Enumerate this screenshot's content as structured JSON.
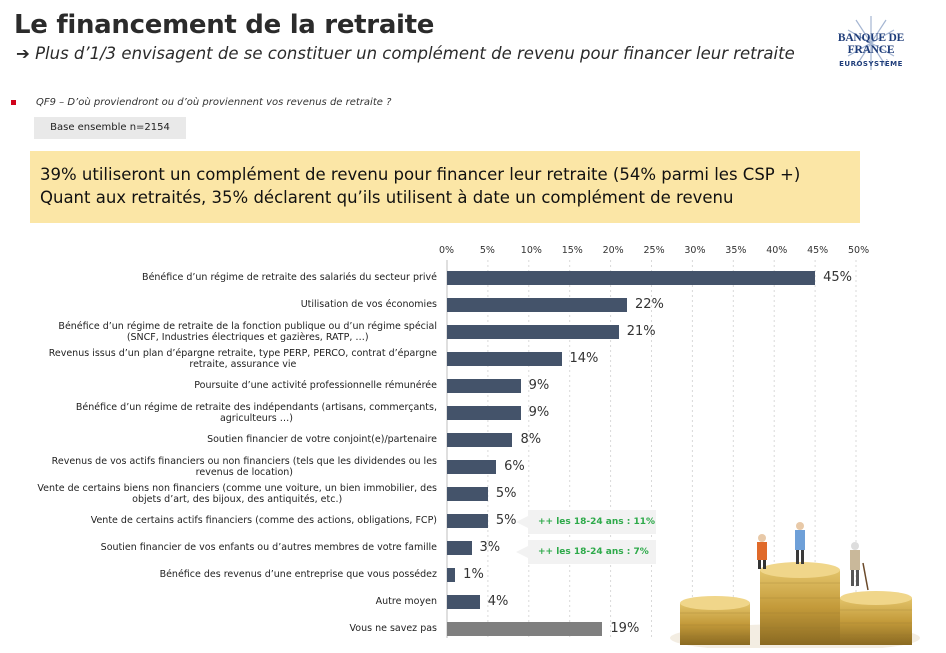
{
  "header": {
    "title": "Le financement de la retraite",
    "subtitle": "Plus d’1/3 envisagent de se constituer un complément de revenu pour financer leur retraite"
  },
  "logo": {
    "name": "BANQUE DE FRANCE",
    "sub": "EUROSYSTÈME"
  },
  "question": "QF9 – D’où proviendront ou d’où proviennent vos revenus de retraite ?",
  "base": "Base ensemble  n=2154",
  "highlight": {
    "line1": "39% utiliseront un complément de revenu pour financer leur retraite (54% parmi les CSP +)",
    "line2": "Quant aux retraités, 35% déclarent qu’ils utilisent à date un complément de revenu"
  },
  "callouts": [
    "++ les 18-24 ans : 11%",
    "++ les 18-24 ans : 7%"
  ],
  "colors": {
    "bar": "#44536a",
    "bar_unknown": "#7f7f7f",
    "highlight": "#fbe6a6",
    "callout_text": "#2eaa4a"
  },
  "chart_data": {
    "type": "bar",
    "orientation": "horizontal",
    "xlim": [
      0,
      50
    ],
    "ticks": [
      "0%",
      "5%",
      "10%",
      "15%",
      "20%",
      "25%",
      "30%",
      "35%",
      "40%",
      "45%",
      "50%"
    ],
    "grid": true,
    "categories": [
      [
        "Bénéfice d’un régime de retraite des salariés du secteur privé"
      ],
      [
        "Utilisation de vos économies"
      ],
      [
        "Bénéfice d’un régime de retraite de la fonction publique ou d’un régime spécial",
        "(SNCF, Industries électriques et gazières, RATP, …)"
      ],
      [
        "Revenus issus d’un plan d’épargne retraite, type PERP, PERCO, contrat d’épargne",
        "retraite, assurance vie"
      ],
      [
        "Poursuite d’une activité professionnelle rémunérée"
      ],
      [
        "Bénéfice d’un régime de retraite des indépendants (artisans, commerçants,",
        "agriculteurs …)"
      ],
      [
        "Soutien financier de votre conjoint(e)/partenaire"
      ],
      [
        "Revenus de vos actifs financiers ou non financiers (tels que les dividendes ou les",
        "revenus de location)"
      ],
      [
        "Vente de certains biens non financiers (comme une voiture, un bien immobilier, des",
        "objets d’art, des bijoux, des antiquités, etc.)"
      ],
      [
        "Vente de certains actifs financiers (comme des actions, obligations, FCP)"
      ],
      [
        "Soutien financier de vos enfants ou d’autres membres de votre famille"
      ],
      [
        "Bénéfice des revenus d’une entreprise que vous possédez"
      ],
      [
        "Autre moyen"
      ],
      [
        "Vous ne savez pas"
      ]
    ],
    "values": [
      45,
      22,
      21,
      14,
      9,
      9,
      8,
      6,
      5,
      5,
      3,
      1,
      4,
      19
    ],
    "value_labels": [
      "45%",
      "22%",
      "21%",
      "14%",
      "9%",
      "9%",
      "8%",
      "6%",
      "5%",
      "5%",
      "3%",
      "1%",
      "4%",
      "19%"
    ]
  }
}
